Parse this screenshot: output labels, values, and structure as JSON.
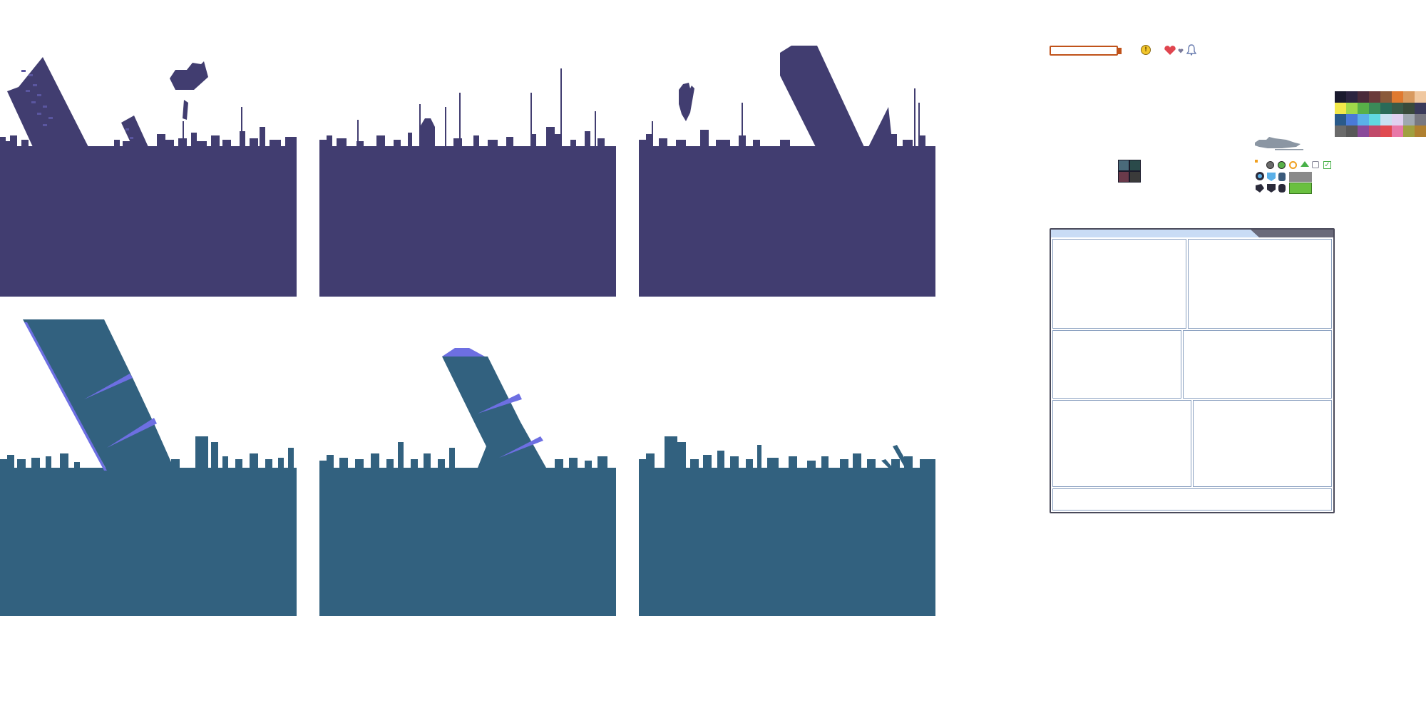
{
  "sheet": {
    "background": "#ffffff",
    "skyline_colors": {
      "night": "#413d70",
      "night_windows": "#5a56a0",
      "day": "#32617f",
      "day_highlight": "#6d6fe2"
    },
    "skylines": [
      {
        "row": "top",
        "name": "skyline-night-1",
        "features": [
          "tilted-tower",
          "small-tilted-building",
          "floating-debris"
        ]
      },
      {
        "row": "top",
        "name": "skyline-night-2",
        "features": [
          "antennas"
        ]
      },
      {
        "row": "top",
        "name": "skyline-night-3",
        "features": [
          "large-tilted-slab",
          "floating-debris"
        ]
      },
      {
        "row": "bottom",
        "name": "skyline-day-1",
        "features": [
          "large-tilted-tower"
        ]
      },
      {
        "row": "bottom",
        "name": "skyline-day-2",
        "features": [
          "tilted-tower-with-cap"
        ]
      },
      {
        "row": "bottom",
        "name": "skyline-day-3",
        "features": [
          "rubble"
        ]
      }
    ]
  },
  "hud": {
    "progress_bar": {
      "fill_fraction": 0.0,
      "border_color": "#c0521a",
      "cap_color": "#c0521a"
    },
    "coin_icon": {
      "color": "#f2c62c",
      "glyph": "!"
    },
    "heart_icon": {
      "color": "#e0454f"
    },
    "small_heart_icon": {
      "color": "#7a7a9a"
    },
    "bell_icon": {
      "color": "#6b7eb0"
    }
  },
  "palette": {
    "colors": [
      "#1a1a2e",
      "#2b2440",
      "#4a2a3a",
      "#6a3a3a",
      "#8a5a3a",
      "#e07a30",
      "#d89a60",
      "#f0c8a0",
      "#f2e84a",
      "#a0d84a",
      "#58b048",
      "#3a8a58",
      "#2a6a58",
      "#3a5a48",
      "#3a4a3a",
      "#3a3a5a",
      "#2a5a8a",
      "#4a7ad8",
      "#5ab0e8",
      "#60d8e0",
      "#c8e0f0",
      "#e0d0f0",
      "#a0a8b0",
      "#787880",
      "#6a6a6a",
      "#585858",
      "#8a4a9a",
      "#c04a6a",
      "#e04a50",
      "#e878a8",
      "#a0a040",
      "#b08030"
    ]
  },
  "sprites": {
    "ship_icon": {
      "color": "#8b96a3"
    },
    "tile_icons": {
      "colors": [
        "#4a6a7a",
        "#2a4a4a",
        "#6a3a4a",
        "#3a3a3a"
      ]
    },
    "status_icons": [
      {
        "name": "dot-icon",
        "color": "#f0a020"
      },
      {
        "name": "gray-circle-icon",
        "color": "#6a6a6a"
      },
      {
        "name": "green-circle-icon",
        "color": "#58b048"
      },
      {
        "name": "gold-ring-icon",
        "color": "#f0a020"
      },
      {
        "name": "up-arrow-icon",
        "color": "#48b048"
      },
      {
        "name": "empty-box-icon",
        "color": "#8a8a9a"
      },
      {
        "name": "check-box-icon",
        "color": "#48b048"
      }
    ],
    "bar_swatches": {
      "gray": "#8a8a8a",
      "green": "#6ac040"
    }
  },
  "window_frame": {
    "title_bar_color": "#c9dcf5",
    "tab_color": "#6a6a7a",
    "border_color": "#4a4a5a",
    "pane_border_color": "#8aa0c0"
  }
}
